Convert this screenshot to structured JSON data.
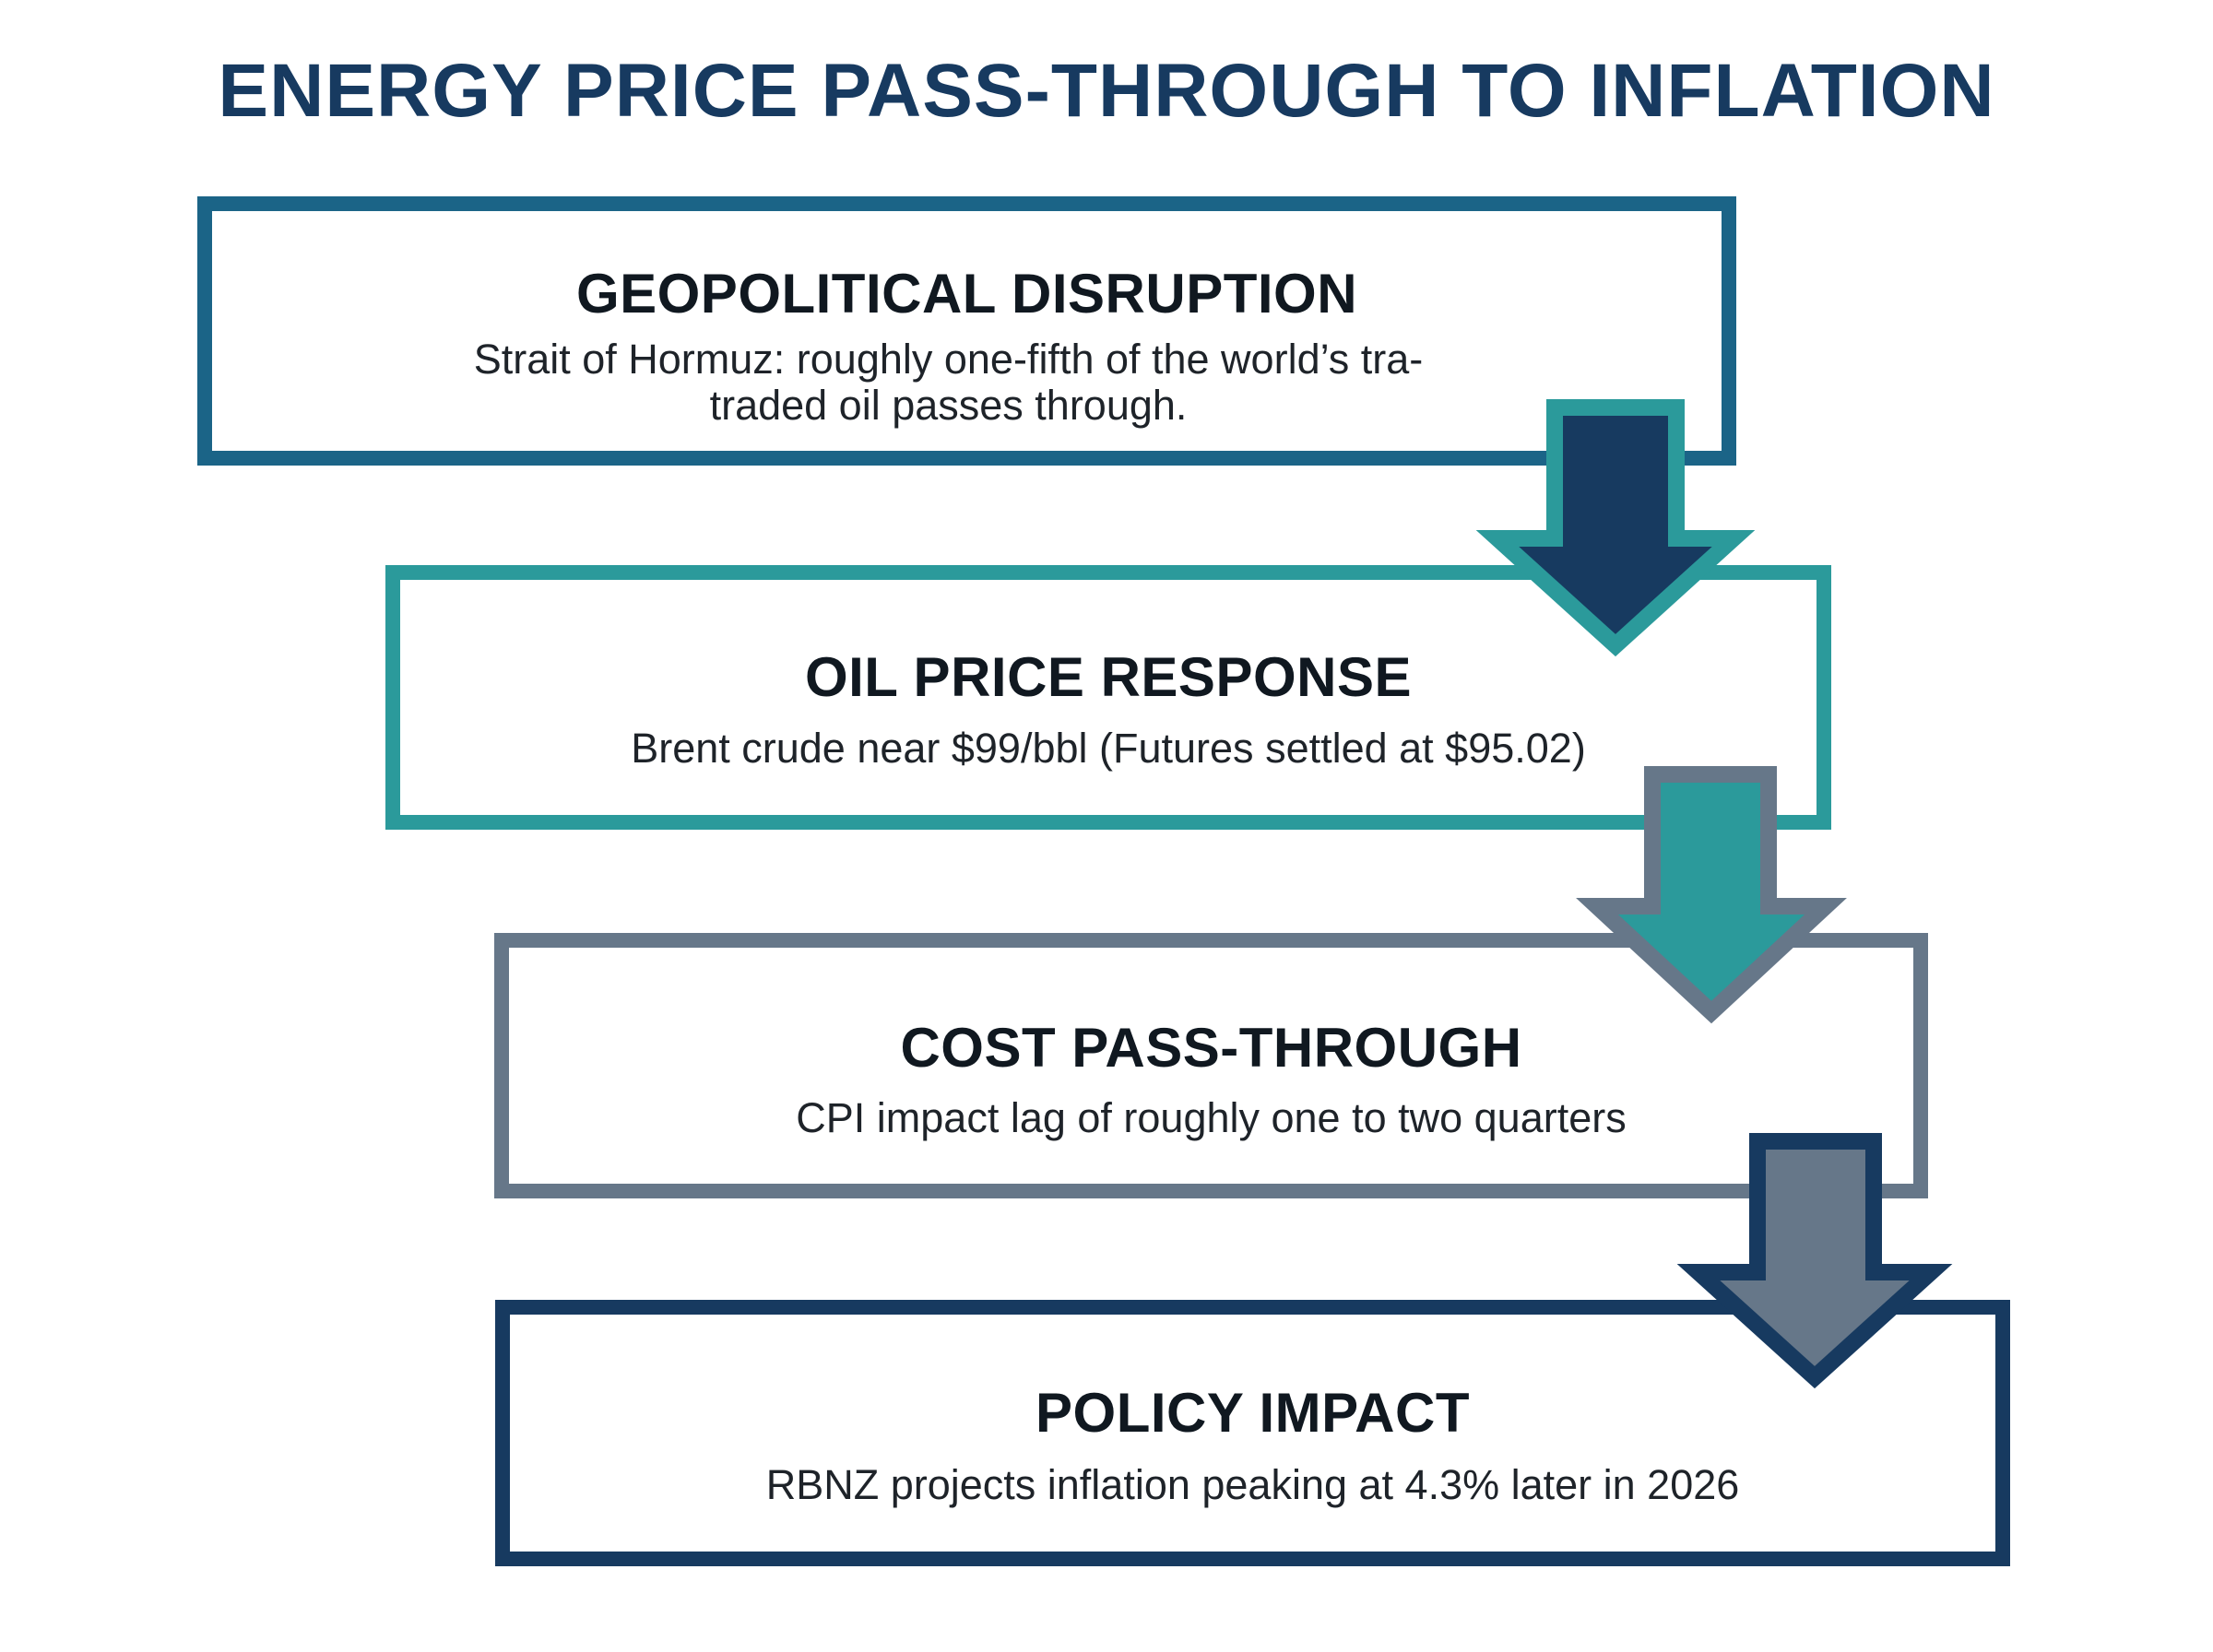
{
  "title": "ENERGY PRICE PASS-THROUGH TO INFLATION",
  "steps": [
    {
      "title": "GEOPOLITICAL DISRUPTION",
      "description": "Strait of Hormuz: roughly one-fifth of the world’s tra- traded oil passes through."
    },
    {
      "title": "OIL PRICE RESPONSE",
      "description": "Brent crude near $99/bbl (Futures settled at $95.02)"
    },
    {
      "title": "COST PASS-THROUGH",
      "description": "CPI impact lag of roughly one to two quarters"
    },
    {
      "title": "POLICY IMPACT",
      "description": "RBNZ projects inflation peaking at 4.3% later in 2026"
    }
  ],
  "colors": {
    "title": "#173a60",
    "step_1_border": "#1b6487",
    "step_2_border": "#2b9a9b",
    "step_3_border": "#667789",
    "step_4_border": "#173a60",
    "arrow_1_fill": "#173a60",
    "arrow_2_fill": "#2b9a9b",
    "arrow_3_fill": "#667789"
  }
}
